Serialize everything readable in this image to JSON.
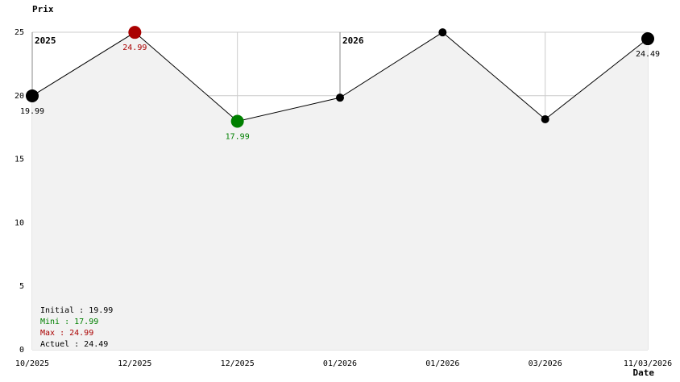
{
  "chart_data": {
    "type": "line",
    "y_label": "Prix",
    "x_label": "Date",
    "categories": [
      "10/2025",
      "12/2025",
      "12/2025",
      "01/2026",
      "01/2026",
      "03/2026",
      "11/03/2026"
    ],
    "values": [
      19.99,
      24.99,
      17.99,
      19.85,
      24.99,
      18.15,
      24.49
    ],
    "value_labels": [
      "19.99",
      "24.99",
      "17.99",
      null,
      null,
      null,
      "24.49"
    ],
    "point_colors": [
      "#000000",
      "#aa0000",
      "#008000",
      "#000000",
      "#000000",
      "#000000",
      "#000000"
    ],
    "line_color": "#000000",
    "area_color": "#f2f2f2",
    "ylim": [
      0,
      25
    ],
    "yticks": [
      0,
      5,
      10,
      15,
      20,
      25
    ],
    "grid": true,
    "annotations": [
      {
        "text": "2025",
        "index": 0
      },
      {
        "text": "2026",
        "index": 3
      }
    ],
    "summary": [
      {
        "text": "Initial : 19.99",
        "color": "#000000"
      },
      {
        "text": "Mini : 17.99",
        "color": "#008000"
      },
      {
        "text": "Max : 24.99",
        "color": "#aa0000"
      },
      {
        "text": "Actuel : 24.49",
        "color": "#000000"
      }
    ]
  }
}
